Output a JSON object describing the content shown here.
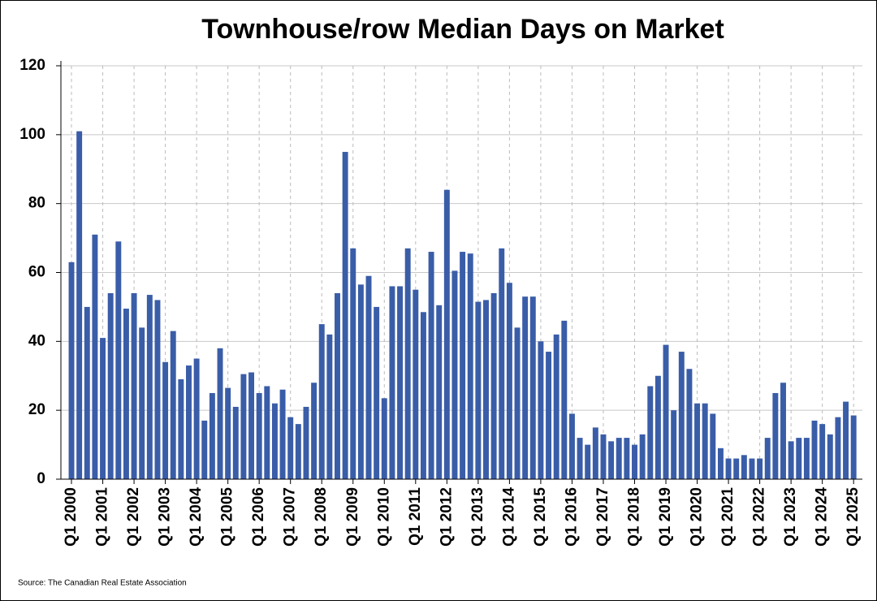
{
  "chart_data": {
    "type": "bar",
    "title": "Townhouse/row Median Days on Market",
    "source": "Source: The Canadian Real Estate Association",
    "color": "#3a5da8",
    "categories": [
      "Q1 2000",
      null,
      null,
      null,
      "Q1 2001",
      null,
      null,
      null,
      "Q1 2002",
      null,
      null,
      null,
      "Q1 2003",
      null,
      null,
      null,
      "Q1 2004",
      null,
      null,
      null,
      "Q1 2005",
      null,
      null,
      null,
      "Q1 2006",
      null,
      null,
      null,
      "Q1 2007",
      null,
      null,
      null,
      "Q1 2008",
      null,
      null,
      null,
      "Q1 2009",
      null,
      null,
      null,
      "Q1 2010",
      null,
      null,
      null,
      "Q1 2011",
      null,
      null,
      null,
      "Q1 2012",
      null,
      null,
      null,
      "Q1 2013",
      null,
      null,
      null,
      "Q1 2014",
      null,
      null,
      null,
      "Q1 2015",
      null,
      null,
      null,
      "Q1 2016",
      null,
      null,
      null,
      "Q1 2017",
      null,
      null,
      null,
      "Q1 2018",
      null,
      null,
      null,
      "Q1 2019",
      null,
      null,
      null,
      "Q1 2020",
      null,
      null,
      null,
      "Q1 2021",
      null,
      null,
      null,
      "Q1 2022",
      null,
      null,
      null,
      "Q1 2023",
      null,
      null,
      null,
      "Q1 2024",
      null,
      null,
      null,
      "Q1 2025"
    ],
    "values": [
      63,
      101,
      50,
      71,
      41,
      54,
      69,
      49.5,
      54,
      44,
      53.5,
      52,
      34,
      43,
      29,
      33,
      35,
      17,
      25,
      38,
      26.5,
      21,
      30.5,
      31,
      25,
      27,
      22,
      26,
      18,
      16,
      21,
      28,
      45,
      42,
      54,
      95,
      67,
      56.5,
      59,
      50,
      23.5,
      56,
      56,
      67,
      55,
      48.5,
      66,
      50.5,
      84,
      60.5,
      66,
      65.5,
      51.5,
      52,
      54,
      67,
      57,
      44,
      53,
      53,
      40,
      37,
      42,
      46,
      19,
      12,
      10,
      15,
      13,
      11,
      12,
      12,
      10,
      13,
      27,
      30,
      39,
      20,
      37,
      32,
      22,
      22,
      19,
      9,
      6,
      6,
      7,
      6,
      6,
      12,
      25,
      28,
      11,
      12,
      12,
      17,
      16,
      13,
      18,
      22.5,
      18.5
    ],
    "ylim": [
      0,
      120
    ],
    "yticks": [
      0,
      20,
      40,
      60,
      80,
      100,
      120
    ],
    "grid": true
  }
}
